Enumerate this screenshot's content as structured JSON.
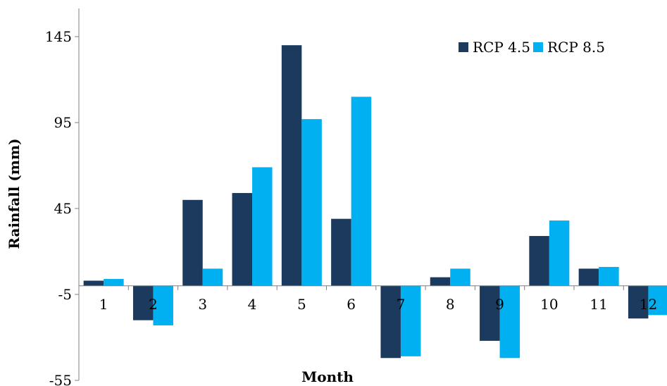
{
  "chart_data": {
    "type": "bar",
    "categories": [
      "1",
      "2",
      "3",
      "4",
      "5",
      "6",
      "7",
      "8",
      "9",
      "10",
      "11",
      "12"
    ],
    "series": [
      {
        "name": "RCP 4.5",
        "color": "#1b3a5e",
        "values": [
          3,
          -20,
          50,
          54,
          140,
          39,
          -42,
          5,
          -32,
          29,
          10,
          -19
        ]
      },
      {
        "name": "RCP 8.5",
        "color": "#00b0f0",
        "values": [
          4,
          -23,
          10,
          69,
          97,
          110,
          -41,
          10,
          -42,
          38,
          11,
          -17
        ]
      }
    ],
    "yticks": [
      "145",
      "95",
      "45",
      "-5",
      "-55"
    ],
    "ytick_values": [
      145,
      95,
      45,
      -5,
      -55
    ],
    "ylim": [
      -55,
      145
    ],
    "baseline": 0,
    "xlabel": "Month",
    "ylabel": "Rainfall (mm)",
    "legend": {
      "position": "top-right"
    },
    "grid": false
  }
}
